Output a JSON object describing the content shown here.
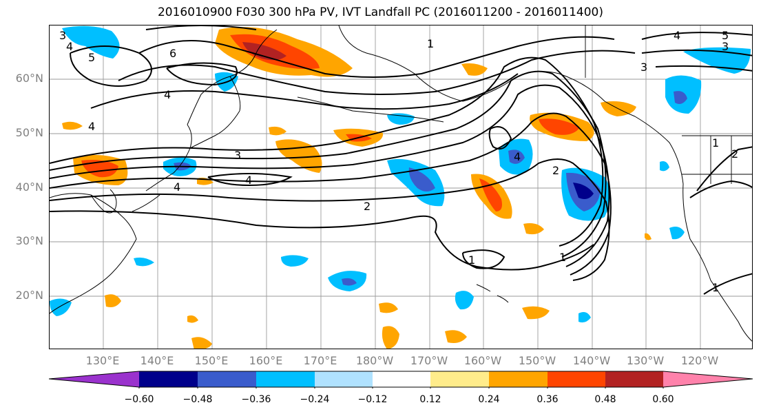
{
  "title": "2016010900 F030 300 hPa PV, IVT Landfall PC (2016011200 - 2016011400)",
  "lat_labels": [
    "60°N",
    "50°N",
    "40°N",
    "30°N",
    "20°N"
  ],
  "lon_labels": [
    "130°E",
    "140°E",
    "150°E",
    "160°E",
    "170°E",
    "180°W",
    "170°W",
    "160°W",
    "150°W",
    "140°W",
    "130°W",
    "120°W"
  ],
  "colorbar": {
    "ticks": [
      "−0.60",
      "−0.48",
      "−0.36",
      "−0.24",
      "−0.12",
      "0.12",
      "0.24",
      "0.36",
      "0.48",
      "0.60"
    ],
    "colors": [
      "#9a32cd",
      "#00008b",
      "#3a5ccc",
      "#00bfff",
      "#b0e2ff",
      "#ffffff",
      "#ffec8b",
      "#ffa500",
      "#ff4500",
      "#b22222",
      "#ff82ab"
    ]
  },
  "contour_labels": [
    "3",
    "4",
    "5",
    "6",
    "4",
    "4",
    "4",
    "3",
    "4",
    "2",
    "1",
    "1",
    "1",
    "2",
    "1",
    "5",
    "4",
    "3",
    "2",
    "1",
    "3",
    "4"
  ],
  "colors": {
    "ocean": "#ffffff",
    "grid": "#808080",
    "contour": "#000000",
    "axis_text": "#808080"
  }
}
